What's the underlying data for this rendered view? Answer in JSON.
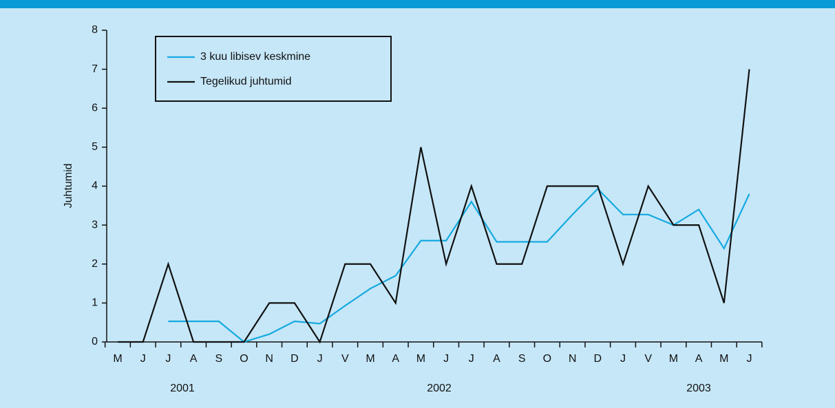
{
  "chart_data": {
    "type": "line",
    "categories": [
      "M",
      "J",
      "J",
      "A",
      "S",
      "O",
      "N",
      "D",
      "J",
      "V",
      "M",
      "A",
      "M",
      "J",
      "J",
      "A",
      "S",
      "O",
      "N",
      "D",
      "J",
      "V",
      "M",
      "A",
      "M",
      "J"
    ],
    "years": [
      "2001",
      "2002",
      "2003"
    ],
    "y_label": "Juhtumid",
    "ylim": [
      0,
      8
    ],
    "yticks": [
      0,
      1,
      2,
      3,
      4,
      5,
      6,
      7,
      8
    ],
    "legend": "top-left",
    "series": [
      {
        "name": "3 kuu libisev keskmine",
        "color": "#14a9e0",
        "values": [
          null,
          null,
          0.53,
          0.53,
          0.53,
          0,
          0.2,
          0.53,
          0.47,
          0.93,
          1.37,
          1.7,
          2.6,
          2.6,
          3.6,
          2.57,
          2.57,
          2.57,
          3.27,
          3.93,
          3.27,
          3.27,
          3.0,
          3.4,
          2.4,
          3.8
        ]
      },
      {
        "name": "Tegelikud juhtumid",
        "color": "#111111",
        "values": [
          0,
          0,
          2,
          0,
          0,
          0,
          1,
          1,
          0,
          2,
          2,
          1,
          5,
          2,
          4,
          2,
          2,
          4,
          4,
          4,
          2,
          4,
          3,
          3,
          1,
          7
        ]
      }
    ]
  }
}
